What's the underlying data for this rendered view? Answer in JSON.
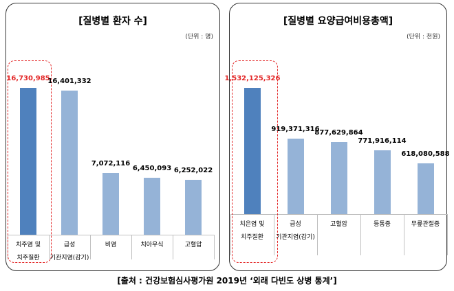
{
  "chart_data": [
    {
      "type": "bar",
      "title": "[질병별 환자 수]",
      "unit": "(단위 : 명)",
      "categories": [
        "치주염 및\n치주질환",
        "급성\n기관지염(감기)",
        "비염",
        "치아우식",
        "고혈압"
      ],
      "values": [
        16730985,
        16401332,
        7072116,
        6450093,
        6252022
      ],
      "value_labels": [
        "16,730,985",
        "16,401,332",
        "7,072,116",
        "6,450,093",
        "6,252,022"
      ],
      "colors": [
        "#4f81bd",
        "#95b3d7",
        "#95b3d7",
        "#95b3d7",
        "#95b3d7"
      ],
      "highlight": 0,
      "highlight_color": "#e32626"
    },
    {
      "type": "bar",
      "title": "[질병별 요양급여비용총액]",
      "unit": "(단위 : 천원)",
      "categories": [
        "치은염 및\n치주질환",
        "급성\n기관지염(감기)",
        "고혈압",
        "등통증",
        "무릎관절증"
      ],
      "values": [
        1532125326,
        919371316,
        877629864,
        771916114,
        618080588
      ],
      "value_labels": [
        "1,532,125,326",
        "919,371,316",
        "877,629,864",
        "771,916,114",
        "618,080,588"
      ],
      "colors": [
        "#4f81bd",
        "#95b3d7",
        "#95b3d7",
        "#95b3d7",
        "#95b3d7"
      ],
      "highlight": 0,
      "highlight_color": "#e32626"
    }
  ],
  "caption": "[출처 : 건강보험심사평가원 2019년 ‘외래 다빈도 상병 통계’]"
}
